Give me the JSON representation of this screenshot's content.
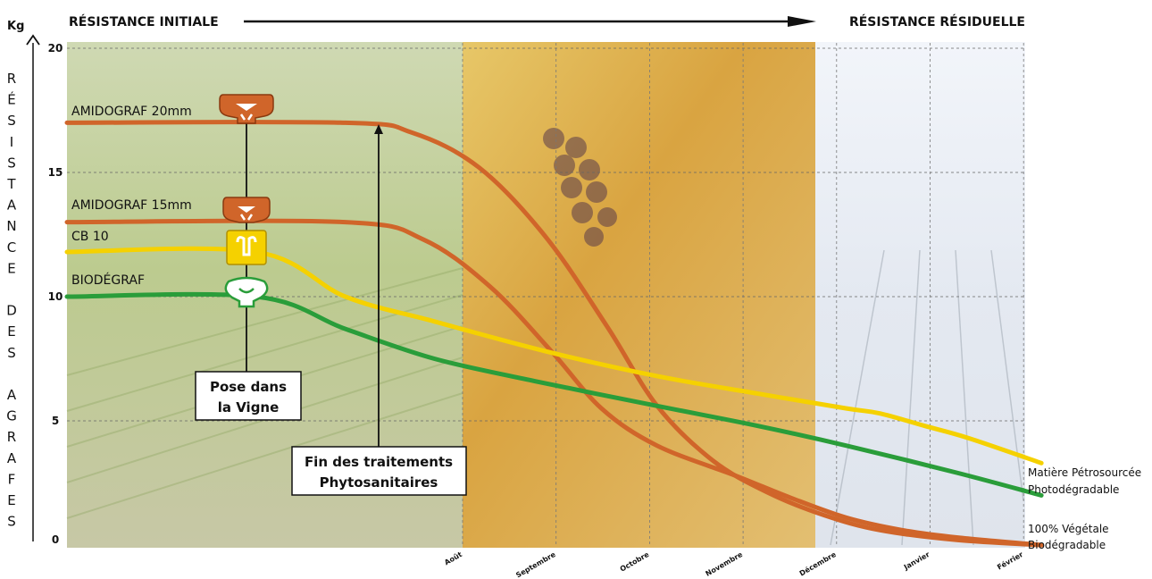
{
  "header": {
    "left": "RÉSISTANCE INITIALE",
    "right": "RÉSISTANCE RÉSIDUELLE"
  },
  "y_axis": {
    "unit": "Kg",
    "vertical_label": "RÉSISTANCE DES AGRAFES",
    "lines": [
      "R",
      "É",
      "S",
      "I",
      "S",
      "T",
      "A",
      "N",
      "C",
      "E",
      "",
      "D",
      "E",
      "S",
      "",
      "A",
      "G",
      "R",
      "A",
      "F",
      "E",
      "S"
    ]
  },
  "annotations": {
    "pose": [
      "Pose dans",
      "la Vigne"
    ],
    "fin": [
      "Fin des traitements",
      "Phytosanitaires"
    ]
  },
  "legend": {
    "petro": [
      "Matière Pétrosourcée",
      "Photodégradable"
    ],
    "vegetale": [
      "100% Végétale",
      "Biodégradable"
    ]
  },
  "colors": {
    "orange": "#d0652a",
    "yellow": "#f5d100",
    "green": "#2a9d3a",
    "bg_vine": "#c9d7a6",
    "bg_autumn": "#d9a441",
    "bg_winter": "#e8eef5"
  },
  "chart_data": {
    "type": "line",
    "ylabel": "Kg",
    "ylim": [
      0,
      20
    ],
    "yticks": [
      0,
      5,
      10,
      15,
      20
    ],
    "grid": true,
    "x_categories": [
      "Août",
      "Septembre",
      "Octobre",
      "Novembre",
      "Décembre",
      "Janvier",
      "Février"
    ],
    "series": [
      {
        "name": "AMIDOGRAF 20mm",
        "color": "orange",
        "icon": "clip-orange-icon",
        "points": [
          [
            0,
            17
          ],
          [
            2.5,
            17
          ],
          [
            3.1,
            16.6
          ],
          [
            3.7,
            15.2
          ],
          [
            4.3,
            12.4
          ],
          [
            4.85,
            8.8
          ],
          [
            5.3,
            5.6
          ],
          [
            5.8,
            3.4
          ],
          [
            6.3,
            2.1
          ],
          [
            6.8,
            1.2
          ],
          [
            7.3,
            0.6
          ],
          [
            8.0,
            0.2
          ],
          [
            8.75,
            0.0
          ]
        ]
      },
      {
        "name": "AMIDOGRAF 15mm",
        "color": "orange",
        "icon": "clip-orange-icon",
        "points": [
          [
            0,
            13
          ],
          [
            2.5,
            13
          ],
          [
            3.2,
            12.3
          ],
          [
            3.8,
            10.4
          ],
          [
            4.35,
            7.8
          ],
          [
            4.8,
            5.5
          ],
          [
            5.3,
            4.0
          ],
          [
            6.0,
            2.8
          ],
          [
            6.5,
            1.9
          ],
          [
            7.0,
            1.1
          ],
          [
            7.5,
            0.6
          ],
          [
            8.0,
            0.3
          ],
          [
            8.75,
            0.0
          ]
        ]
      },
      {
        "name": "CB 10",
        "color": "yellow",
        "icon": "clip-yellow-icon",
        "points": [
          [
            0,
            11.8
          ],
          [
            1.7,
            11.8
          ],
          [
            2.5,
            10.0
          ],
          [
            3.3,
            9.0
          ],
          [
            4.3,
            7.8
          ],
          [
            5.3,
            6.8
          ],
          [
            6.2,
            6.1
          ],
          [
            7.0,
            5.5
          ],
          [
            7.3,
            5.3
          ],
          [
            7.7,
            4.8
          ],
          [
            8.1,
            4.3
          ],
          [
            8.75,
            3.3
          ]
        ]
      },
      {
        "name": "BIODÉGRAF",
        "color": "green",
        "icon": "clip-green-icon",
        "points": [
          [
            0,
            10.0
          ],
          [
            1.7,
            10.0
          ],
          [
            2.5,
            8.7
          ],
          [
            3.3,
            7.5
          ],
          [
            4.2,
            6.6
          ],
          [
            5.3,
            5.6
          ],
          [
            6.2,
            4.8
          ],
          [
            7.0,
            4.0
          ],
          [
            8.0,
            2.9
          ],
          [
            8.75,
            2.0
          ]
        ]
      }
    ]
  }
}
